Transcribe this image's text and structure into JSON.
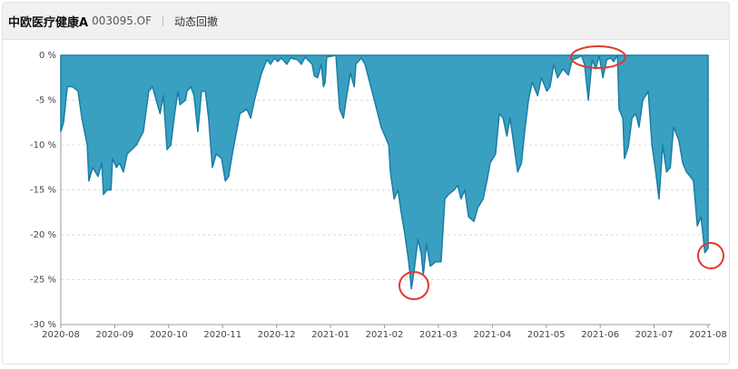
{
  "header": {
    "title": "中欧医疗健康A",
    "code": "003095.OF",
    "tab": "动态回撤"
  },
  "chart_data": {
    "type": "area",
    "color": "#3aa0c2",
    "line_color": "#1a7ea3",
    "grid": true,
    "xlim": [
      0,
      12.05
    ],
    "ylim": [
      -30,
      0
    ],
    "xticks": [
      {
        "value": 0,
        "label": "2020-08"
      },
      {
        "value": 1,
        "label": "2020-09"
      },
      {
        "value": 2,
        "label": "2020-10"
      },
      {
        "value": 3,
        "label": "2020-11"
      },
      {
        "value": 4,
        "label": "2020-12"
      },
      {
        "value": 5,
        "label": "2021-01"
      },
      {
        "value": 6,
        "label": "2021-02"
      },
      {
        "value": 7,
        "label": "2021-03"
      },
      {
        "value": 8,
        "label": "2021-04"
      },
      {
        "value": 9,
        "label": "2021-05"
      },
      {
        "value": 10,
        "label": "2021-06"
      },
      {
        "value": 11,
        "label": "2021-07"
      },
      {
        "value": 12,
        "label": "2021-08"
      }
    ],
    "yticks": [
      {
        "value": 0,
        "label": "0 %"
      },
      {
        "value": -5,
        "label": "-5 %"
      },
      {
        "value": -10,
        "label": "-10 %"
      },
      {
        "value": -15,
        "label": "-15 %"
      },
      {
        "value": -20,
        "label": "-20 %"
      },
      {
        "value": -25,
        "label": "-25 %"
      },
      {
        "value": -30,
        "label": "-30 %"
      }
    ],
    "x": [
      0,
      0.05,
      0.12,
      0.22,
      0.32,
      0.39,
      0.49,
      0.52,
      0.59,
      0.69,
      0.76,
      0.79,
      0.86,
      0.93,
      0.96,
      1.03,
      1.09,
      1.16,
      1.23,
      1.4,
      1.53,
      1.63,
      1.7,
      1.77,
      1.84,
      1.9,
      1.97,
      2.04,
      2.1,
      2.17,
      2.21,
      2.31,
      2.34,
      2.41,
      2.47,
      2.54,
      2.61,
      2.68,
      2.74,
      2.81,
      2.88,
      2.98,
      3.05,
      3.11,
      3.18,
      3.32,
      3.45,
      3.52,
      3.59,
      3.72,
      3.82,
      3.89,
      3.96,
      4.02,
      4.09,
      4.19,
      4.26,
      4.39,
      4.46,
      4.53,
      4.66,
      4.7,
      4.76,
      4.83,
      4.87,
      4.9,
      4.93,
      5.1,
      5.17,
      5.24,
      5.3,
      5.37,
      5.44,
      5.47,
      5.57,
      5.64,
      5.77,
      5.94,
      6.08,
      6.11,
      6.18,
      6.25,
      6.31,
      6.38,
      6.45,
      6.5,
      6.55,
      6.62,
      6.68,
      6.72,
      6.78,
      6.85,
      6.95,
      7.05,
      7.12,
      7.19,
      7.29,
      7.36,
      7.42,
      7.49,
      7.56,
      7.66,
      7.73,
      7.83,
      7.9,
      7.96,
      8.06,
      8.13,
      8.2,
      8.27,
      8.33,
      8.4,
      8.47,
      8.54,
      8.6,
      8.67,
      8.74,
      8.84,
      8.91,
      9.01,
      9.07,
      9.14,
      9.21,
      9.31,
      9.41,
      9.48,
      9.58,
      9.65,
      9.71,
      9.78,
      9.85,
      9.92,
      9.98,
      10.05,
      10.12,
      10.19,
      10.25,
      10.32,
      10.35,
      10.42,
      10.45,
      10.52,
      10.59,
      10.66,
      10.72,
      10.79,
      10.89,
      10.96,
      11.03,
      11.09,
      11.16,
      11.23,
      11.3,
      11.36,
      11.46,
      11.53,
      11.6,
      11.67,
      11.73,
      11.8,
      11.87,
      11.94,
      12.0
    ],
    "values": [
      -8.5,
      -7.5,
      -3.5,
      -3.5,
      -4,
      -7,
      -10,
      -14,
      -12.5,
      -13.5,
      -12,
      -15.5,
      -15,
      -15,
      -11.5,
      -12.5,
      -12,
      -13,
      -11,
      -10,
      -8.5,
      -4,
      -3.5,
      -5,
      -6.5,
      -4.5,
      -10.5,
      -10,
      -7,
      -4,
      -5.5,
      -5,
      -4,
      -3.5,
      -4.5,
      -8.5,
      -4,
      -4,
      -7,
      -12.5,
      -11,
      -11.5,
      -14,
      -13.5,
      -11,
      -6.5,
      -6,
      -7,
      -5,
      -2,
      -0.5,
      -1,
      -0.3,
      -0.7,
      -0.3,
      -1,
      -0.3,
      -0.5,
      -1,
      -0.2,
      -1,
      -2.3,
      -2.5,
      -1,
      -3.5,
      -3,
      -0.2,
      0,
      -6,
      -7,
      -4.5,
      -2,
      -3.5,
      -1,
      -0.3,
      -1,
      -4,
      -8,
      -10,
      -13,
      -16,
      -15,
      -17.5,
      -20,
      -23,
      -26,
      -24,
      -20.5,
      -22,
      -24.5,
      -21,
      -23.5,
      -23,
      -23,
      -16,
      -15.5,
      -15,
      -14.5,
      -16,
      -15,
      -18,
      -18.5,
      -17,
      -16,
      -14,
      -12,
      -11,
      -6.5,
      -7,
      -9,
      -7,
      -10,
      -13,
      -12,
      -8.5,
      -5,
      -3,
      -4.5,
      -2.5,
      -4,
      -3.5,
      -1,
      -2.5,
      -1.5,
      -2.2,
      -0.5,
      -0.3,
      0,
      -1,
      -5,
      -0.5,
      -1.5,
      0,
      -2.5,
      -0.5,
      -0.3,
      -0.7,
      0,
      -6,
      -7,
      -11.5,
      -10.2,
      -7,
      -6.5,
      -8,
      -5,
      -4,
      -10,
      -13,
      -16,
      -10,
      -13,
      -12.5,
      -8,
      -9.5,
      -12,
      -13,
      -13.5,
      -14,
      -19,
      -18,
      -22,
      -21.5
    ]
  }
}
